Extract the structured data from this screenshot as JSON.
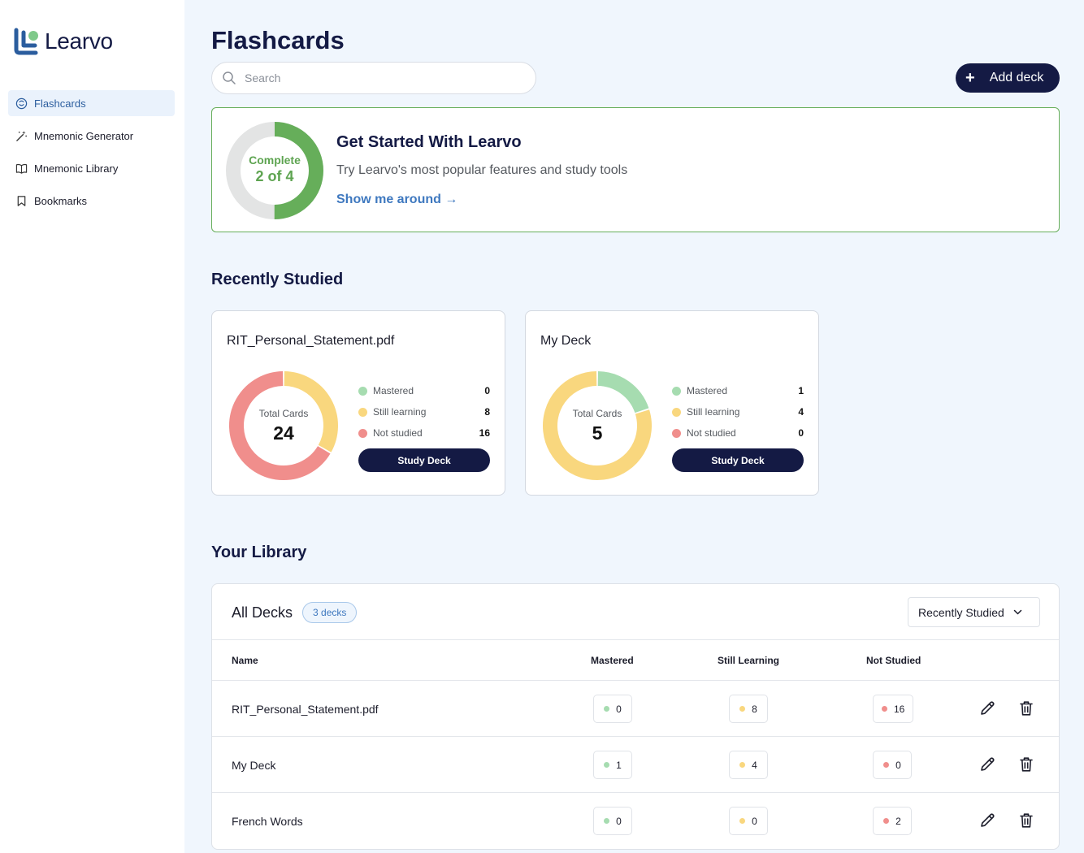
{
  "app": {
    "name": "Learvo"
  },
  "colors": {
    "navy": "#141a44",
    "mastered": "#a6dcb0",
    "still_learning": "#f9d77e",
    "not_studied": "#f08e8c",
    "progress_green": "#66ae5a",
    "link_blue": "#3e78bf"
  },
  "sidebar": {
    "items": [
      {
        "label": "Flashcards",
        "icon": "flashcards-icon",
        "active": true
      },
      {
        "label": "Mnemonic Generator",
        "icon": "magic-wand-icon",
        "active": false
      },
      {
        "label": "Mnemonic Library",
        "icon": "book-icon",
        "active": false
      },
      {
        "label": "Bookmarks",
        "icon": "bookmark-icon",
        "active": false
      }
    ]
  },
  "header": {
    "title": "Flashcards",
    "search_placeholder": "Search",
    "add_deck_label": "Add deck"
  },
  "get_started": {
    "ring_line1": "Complete",
    "ring_line2": "2 of 4",
    "progress_fraction": 0.5,
    "title": "Get Started With Learvo",
    "subtitle": "Try Learvo's most popular features and study tools",
    "link": "Show me around →"
  },
  "recently_studied": {
    "title": "Recently Studied",
    "total_label": "Total Cards",
    "legend_labels": {
      "mastered": "Mastered",
      "still_learning": "Still learning",
      "not_studied": "Not studied"
    },
    "study_label": "Study Deck",
    "decks": [
      {
        "name": "RIT_Personal_Statement.pdf",
        "total": "24",
        "mastered": "0",
        "still_learning": "8",
        "not_studied": "16"
      },
      {
        "name": "My Deck",
        "total": "5",
        "mastered": "1",
        "still_learning": "4",
        "not_studied": "0"
      }
    ]
  },
  "library": {
    "title": "Your Library",
    "all_decks_label": "All Decks",
    "count_badge": "3 decks",
    "sort_label": "Recently Studied",
    "columns": {
      "name": "Name",
      "mastered": "Mastered",
      "still_learning": "Still Learning",
      "not_studied": "Not Studied"
    },
    "rows": [
      {
        "name": "RIT_Personal_Statement.pdf",
        "mastered": "0",
        "still_learning": "8",
        "not_studied": "16"
      },
      {
        "name": "My Deck",
        "mastered": "1",
        "still_learning": "4",
        "not_studied": "0"
      },
      {
        "name": "French Words",
        "mastered": "0",
        "still_learning": "0",
        "not_studied": "2"
      }
    ]
  }
}
